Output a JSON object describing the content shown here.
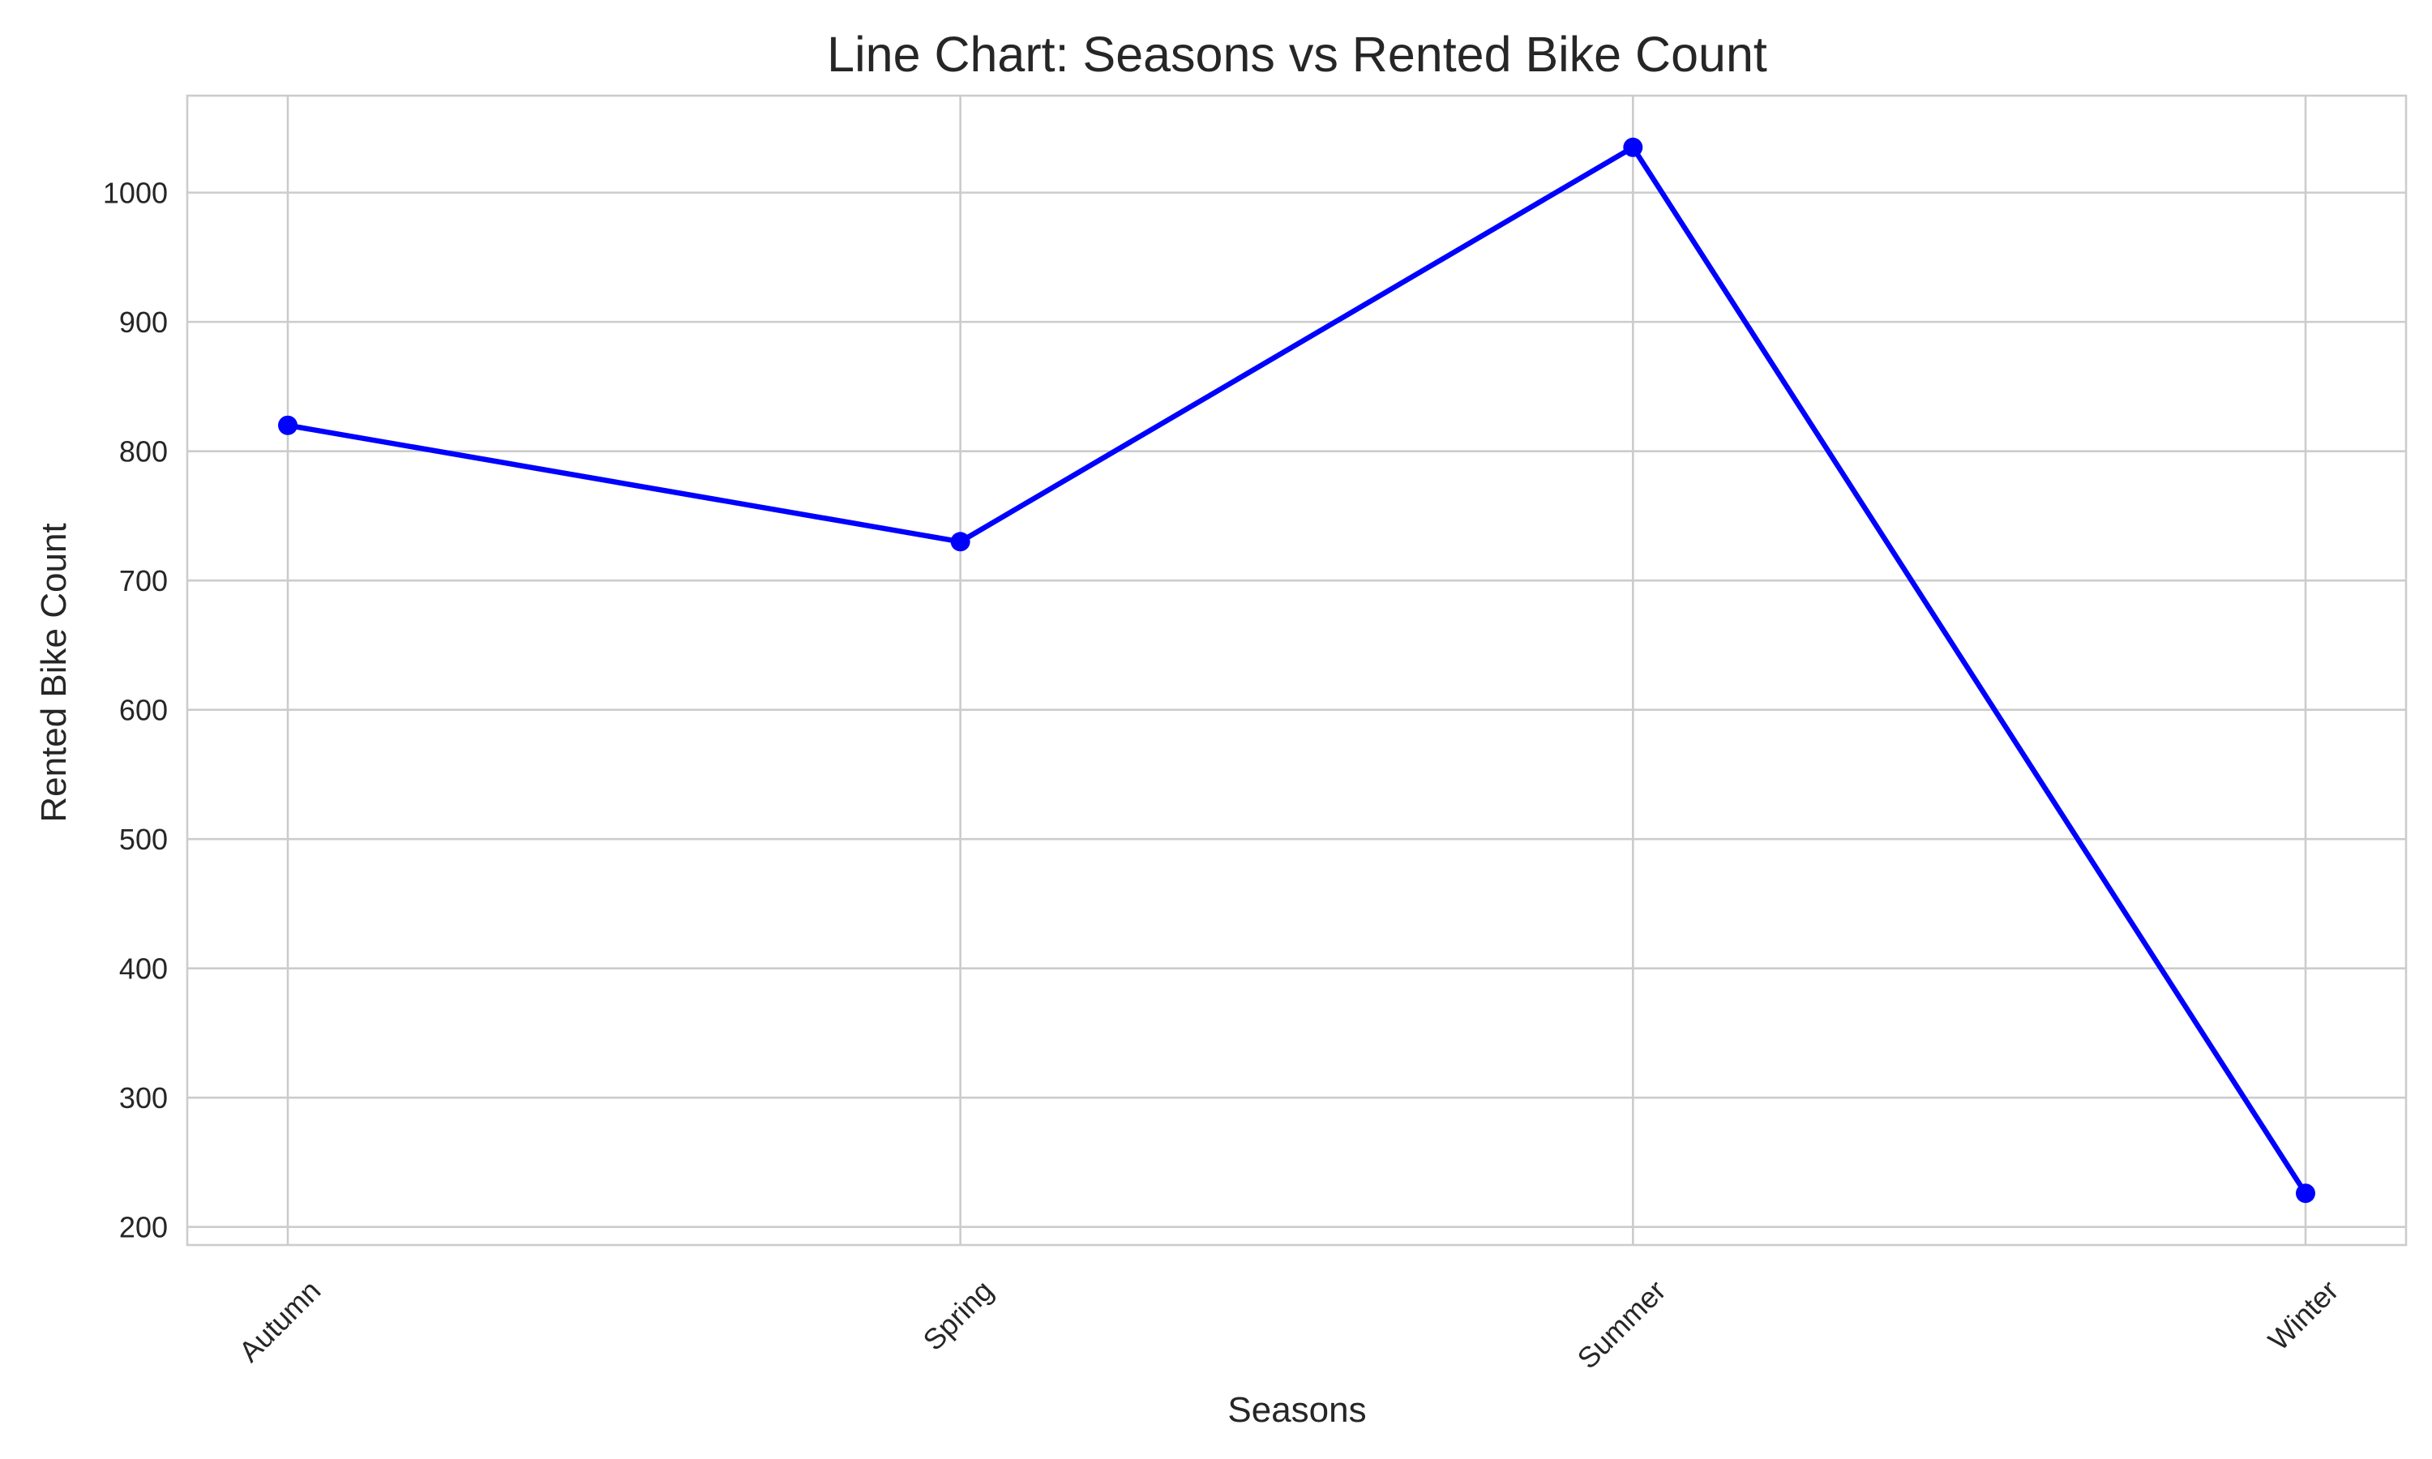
{
  "chart_data": {
    "type": "line",
    "title": "Line Chart: Seasons vs Rented Bike Count",
    "xlabel": "Seasons",
    "ylabel": "Rented Bike Count",
    "categories": [
      "Autumn",
      "Spring",
      "Summer",
      "Winter"
    ],
    "series": [
      {
        "values": [
          820,
          730,
          1035,
          226
        ],
        "color": "#0000ff",
        "marker": "circle"
      }
    ],
    "ylim": [
      186,
      1075
    ],
    "yticks": [
      200,
      300,
      400,
      500,
      600,
      700,
      800,
      900,
      1000
    ],
    "grid": true,
    "legend": "none"
  }
}
